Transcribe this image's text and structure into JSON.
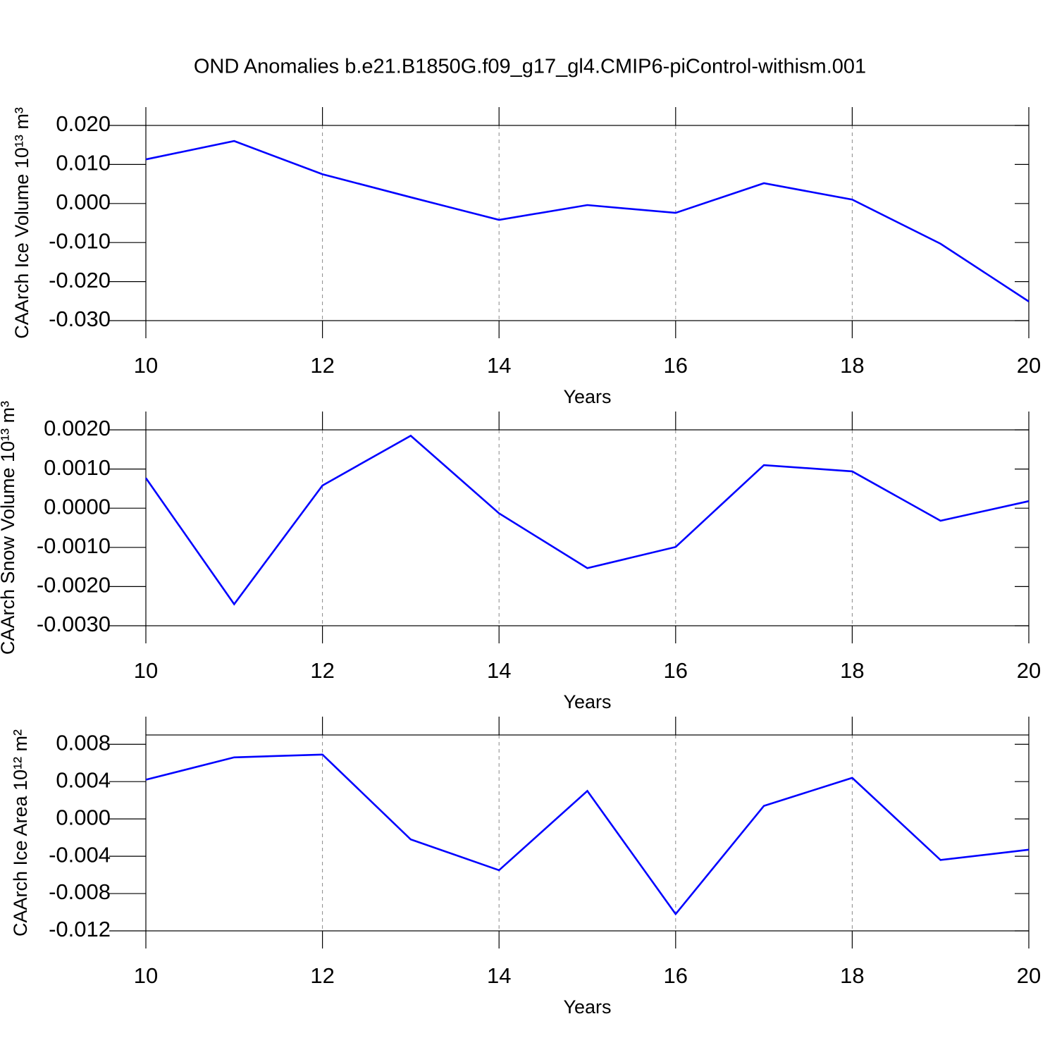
{
  "title": "OND Anomalies b.e21.B1850G.f09_g17_gl4.CMIP6-piControl-withism.001",
  "chart_data": [
    {
      "type": "line",
      "ylabel": "CAArch Ice Volume 10¹³ m³",
      "xlabel": "Years",
      "x": [
        10,
        11,
        12,
        13,
        14,
        15,
        16,
        17,
        18,
        19,
        20
      ],
      "series": [
        {
          "color": "#0000ff",
          "values": [
            0.0113,
            0.016,
            0.0075,
            0.0016,
            -0.0042,
            -0.0004,
            -0.0024,
            0.0052,
            0.001,
            -0.0103,
            -0.0251
          ]
        }
      ],
      "xlim": [
        10,
        20
      ],
      "xticks": [
        10,
        12,
        14,
        16,
        18,
        20
      ],
      "ylim": [
        -0.03,
        0.02
      ],
      "yticks": [
        {
          "value": -0.03,
          "label": "-0.030"
        },
        {
          "value": -0.02,
          "label": "-0.020"
        },
        {
          "value": -0.01,
          "label": "-0.010"
        },
        {
          "value": 0,
          "label": "0.000"
        },
        {
          "value": 0.01,
          "label": "0.010"
        },
        {
          "value": 0.02,
          "label": "0.020"
        }
      ],
      "grid": true
    },
    {
      "type": "line",
      "ylabel": "CAArch Snow Volume 10¹³ m³",
      "xlabel": "Years",
      "x": [
        10,
        11,
        12,
        13,
        14,
        15,
        16,
        17,
        18,
        19,
        20
      ],
      "series": [
        {
          "color": "#0000ff",
          "values": [
            0.00077,
            -0.00245,
            0.00058,
            0.00185,
            -0.00013,
            -0.00153,
            -0.00099,
            0.0011,
            0.00094,
            -0.00032,
            0.00018
          ]
        }
      ],
      "xlim": [
        10,
        20
      ],
      "xticks": [
        10,
        12,
        14,
        16,
        18,
        20
      ],
      "ylim": [
        -0.003,
        0.002
      ],
      "yticks": [
        {
          "value": -0.003,
          "label": "-0.0030"
        },
        {
          "value": -0.002,
          "label": "-0.0020"
        },
        {
          "value": -0.001,
          "label": "-0.0010"
        },
        {
          "value": 0,
          "label": "0.0000"
        },
        {
          "value": 0.001,
          "label": "0.0010"
        },
        {
          "value": 0.002,
          "label": "0.0020"
        }
      ],
      "grid": true
    },
    {
      "type": "line",
      "ylabel": "CAArch Ice Area 10¹² m²",
      "xlabel": "Years",
      "x": [
        10,
        11,
        12,
        13,
        14,
        15,
        16,
        17,
        18,
        19,
        20
      ],
      "series": [
        {
          "color": "#0000ff",
          "values": [
            0.0042,
            0.0066,
            0.0069,
            -0.0022,
            -0.0055,
            0.003,
            -0.0102,
            0.0014,
            0.0044,
            -0.0044,
            -0.0033
          ]
        }
      ],
      "xlim": [
        10,
        20
      ],
      "xticks": [
        10,
        12,
        14,
        16,
        18,
        20
      ],
      "ylim": [
        -0.012,
        0.009
      ],
      "yticks": [
        {
          "value": -0.012,
          "label": "-0.012"
        },
        {
          "value": -0.008,
          "label": "-0.008"
        },
        {
          "value": -0.004,
          "label": "-0.004"
        },
        {
          "value": 0,
          "label": "0.000"
        },
        {
          "value": 0.004,
          "label": "0.004"
        },
        {
          "value": 0.008,
          "label": "0.008"
        }
      ],
      "grid": true
    }
  ]
}
